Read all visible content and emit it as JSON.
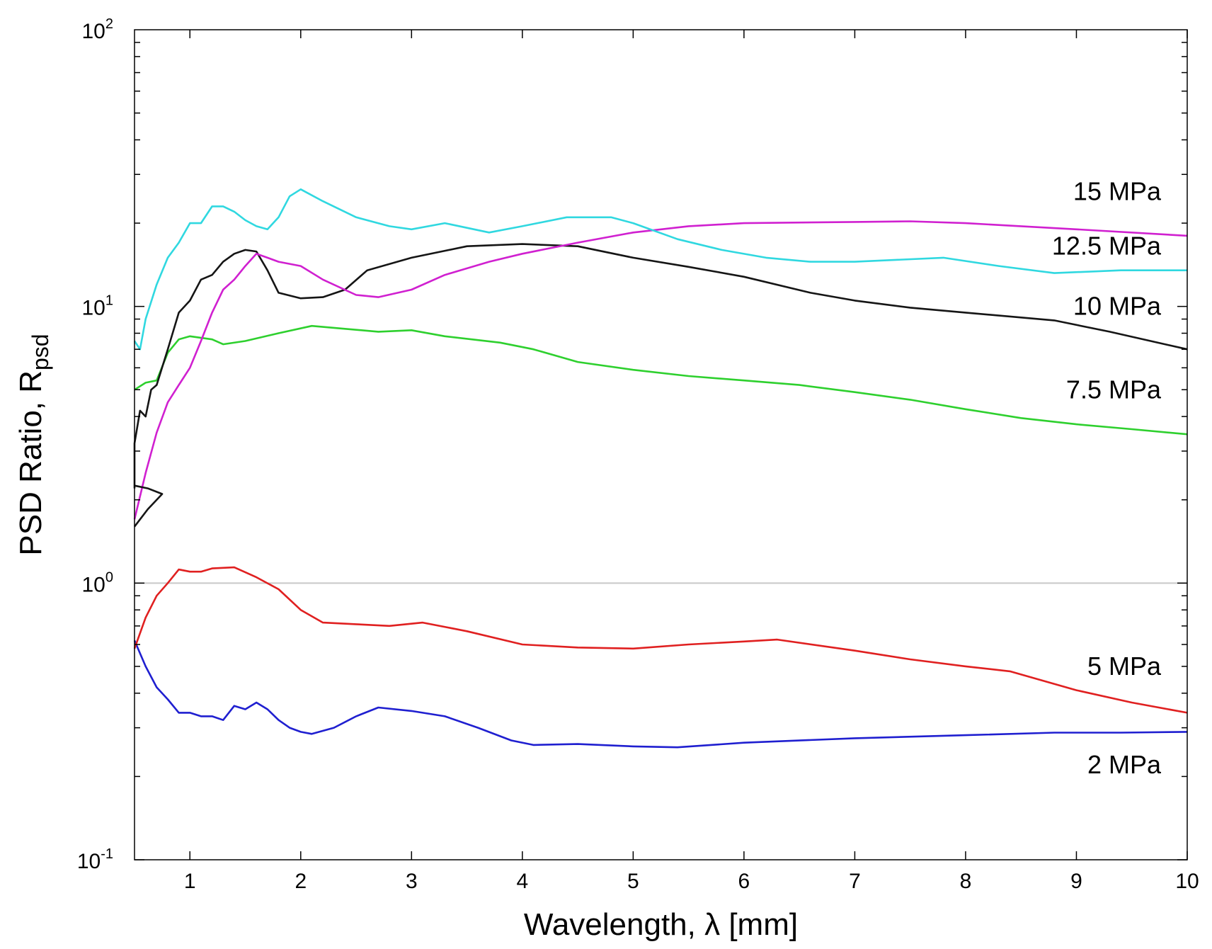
{
  "chart_data": {
    "type": "line",
    "title": "",
    "xlabel": "Wavelength, λ [mm]",
    "ylabel": "PSD Ratio, R",
    "ylabel_sub": "psd",
    "xlim": [
      0.5,
      10
    ],
    "ylim": [
      0.1,
      100
    ],
    "yscale": "log",
    "grid": false,
    "x_ticks": [
      "1",
      "2",
      "3",
      "4",
      "5",
      "6",
      "7",
      "8",
      "9",
      "10"
    ],
    "y_ticks": [
      {
        "base": "10",
        "exp": "-1"
      },
      {
        "base": "10",
        "exp": "0"
      },
      {
        "base": "10",
        "exp": "1"
      },
      {
        "base": "10",
        "exp": "2"
      }
    ],
    "reference_line": {
      "y": 1,
      "color": "#c8c8c8"
    },
    "series": [
      {
        "name": "2 MPa",
        "color": "#1f1fd0",
        "label_pos": [
          9.5,
          0.22
        ],
        "points": [
          [
            0.5,
            0.62
          ],
          [
            0.6,
            0.5
          ],
          [
            0.7,
            0.42
          ],
          [
            0.8,
            0.38
          ],
          [
            0.9,
            0.34
          ],
          [
            1.0,
            0.34
          ],
          [
            1.1,
            0.33
          ],
          [
            1.2,
            0.33
          ],
          [
            1.3,
            0.32
          ],
          [
            1.4,
            0.36
          ],
          [
            1.5,
            0.35
          ],
          [
            1.6,
            0.37
          ],
          [
            1.7,
            0.35
          ],
          [
            1.8,
            0.32
          ],
          [
            1.9,
            0.3
          ],
          [
            2.0,
            0.29
          ],
          [
            2.1,
            0.285
          ],
          [
            2.3,
            0.3
          ],
          [
            2.5,
            0.33
          ],
          [
            2.7,
            0.355
          ],
          [
            3.0,
            0.345
          ],
          [
            3.3,
            0.33
          ],
          [
            3.6,
            0.3
          ],
          [
            3.9,
            0.27
          ],
          [
            4.1,
            0.26
          ],
          [
            4.5,
            0.262
          ],
          [
            5.0,
            0.257
          ],
          [
            5.4,
            0.255
          ],
          [
            6.0,
            0.265
          ],
          [
            7.0,
            0.275
          ],
          [
            8.0,
            0.282
          ],
          [
            8.8,
            0.288
          ],
          [
            9.4,
            0.288
          ],
          [
            10.0,
            0.29
          ]
        ]
      },
      {
        "name": "5 MPa",
        "color": "#e02020",
        "label_pos": [
          9.5,
          0.5
        ],
        "points": [
          [
            0.5,
            0.58
          ],
          [
            0.6,
            0.75
          ],
          [
            0.7,
            0.9
          ],
          [
            0.8,
            1.0
          ],
          [
            0.9,
            1.12
          ],
          [
            1.0,
            1.1
          ],
          [
            1.1,
            1.1
          ],
          [
            1.2,
            1.13
          ],
          [
            1.4,
            1.14
          ],
          [
            1.6,
            1.05
          ],
          [
            1.8,
            0.95
          ],
          [
            2.0,
            0.8
          ],
          [
            2.2,
            0.72
          ],
          [
            2.5,
            0.71
          ],
          [
            2.8,
            0.7
          ],
          [
            3.1,
            0.72
          ],
          [
            3.5,
            0.67
          ],
          [
            4.0,
            0.6
          ],
          [
            4.5,
            0.585
          ],
          [
            5.0,
            0.58
          ],
          [
            5.5,
            0.6
          ],
          [
            6.0,
            0.615
          ],
          [
            6.3,
            0.625
          ],
          [
            7.0,
            0.57
          ],
          [
            7.5,
            0.53
          ],
          [
            8.0,
            0.5
          ],
          [
            8.4,
            0.48
          ],
          [
            9.0,
            0.41
          ],
          [
            9.5,
            0.37
          ],
          [
            10.0,
            0.34
          ]
        ]
      },
      {
        "name": "7.5 MPa",
        "color": "#2ed02e",
        "label_pos": [
          9.5,
          5.0
        ],
        "points": [
          [
            0.5,
            5.0
          ],
          [
            0.6,
            5.3
          ],
          [
            0.7,
            5.4
          ],
          [
            0.8,
            6.8
          ],
          [
            0.9,
            7.6
          ],
          [
            1.0,
            7.8
          ],
          [
            1.2,
            7.6
          ],
          [
            1.3,
            7.3
          ],
          [
            1.5,
            7.5
          ],
          [
            1.8,
            8.0
          ],
          [
            2.1,
            8.5
          ],
          [
            2.4,
            8.3
          ],
          [
            2.7,
            8.1
          ],
          [
            3.0,
            8.2
          ],
          [
            3.3,
            7.8
          ],
          [
            3.8,
            7.4
          ],
          [
            4.1,
            7.0
          ],
          [
            4.5,
            6.3
          ],
          [
            5.0,
            5.9
          ],
          [
            5.5,
            5.6
          ],
          [
            6.0,
            5.4
          ],
          [
            6.5,
            5.2
          ],
          [
            7.0,
            4.9
          ],
          [
            7.5,
            4.6
          ],
          [
            8.0,
            4.25
          ],
          [
            8.5,
            3.95
          ],
          [
            9.0,
            3.75
          ],
          [
            9.5,
            3.6
          ],
          [
            10.0,
            3.45
          ]
        ]
      },
      {
        "name": "10 MPa",
        "color": "#151515",
        "label_pos": [
          9.5,
          10.0
        ],
        "points": [
          [
            0.5,
            2.2
          ],
          [
            0.5,
            3.2
          ],
          [
            0.55,
            4.2
          ],
          [
            0.6,
            4.0
          ],
          [
            0.65,
            5.0
          ],
          [
            0.7,
            5.2
          ],
          [
            0.8,
            7.0
          ],
          [
            0.9,
            9.5
          ],
          [
            1.0,
            10.5
          ],
          [
            1.1,
            12.5
          ],
          [
            1.2,
            13.0
          ],
          [
            1.3,
            14.5
          ],
          [
            1.4,
            15.5
          ],
          [
            1.5,
            16.0
          ],
          [
            1.6,
            15.8
          ],
          [
            1.7,
            13.5
          ],
          [
            1.8,
            11.2
          ],
          [
            2.0,
            10.7
          ],
          [
            2.2,
            10.8
          ],
          [
            2.4,
            11.5
          ],
          [
            2.6,
            13.5
          ],
          [
            3.0,
            15.0
          ],
          [
            3.5,
            16.5
          ],
          [
            4.0,
            16.8
          ],
          [
            4.5,
            16.5
          ],
          [
            5.0,
            15.0
          ],
          [
            5.5,
            13.9
          ],
          [
            6.0,
            12.8
          ],
          [
            6.6,
            11.2
          ],
          [
            7.0,
            10.5
          ],
          [
            7.5,
            9.9
          ],
          [
            8.0,
            9.5
          ],
          [
            8.8,
            8.9
          ],
          [
            9.3,
            8.1
          ],
          [
            10.0,
            7.0
          ]
        ]
      },
      {
        "name": "12.5 MPa",
        "color": "#d020d0",
        "label_pos": [
          9.5,
          16.5
        ],
        "points": [
          [
            0.5,
            1.7
          ],
          [
            0.6,
            2.5
          ],
          [
            0.7,
            3.5
          ],
          [
            0.8,
            4.5
          ],
          [
            0.9,
            5.2
          ],
          [
            1.0,
            6.0
          ],
          [
            1.1,
            7.5
          ],
          [
            1.2,
            9.5
          ],
          [
            1.3,
            11.5
          ],
          [
            1.4,
            12.5
          ],
          [
            1.5,
            14.0
          ],
          [
            1.6,
            15.5
          ],
          [
            1.7,
            15.0
          ],
          [
            1.8,
            14.5
          ],
          [
            2.0,
            14.0
          ],
          [
            2.2,
            12.5
          ],
          [
            2.5,
            11.0
          ],
          [
            2.7,
            10.8
          ],
          [
            3.0,
            11.5
          ],
          [
            3.3,
            13.0
          ],
          [
            3.7,
            14.5
          ],
          [
            4.0,
            15.5
          ],
          [
            4.5,
            17.0
          ],
          [
            5.0,
            18.5
          ],
          [
            5.5,
            19.5
          ],
          [
            6.0,
            20.0
          ],
          [
            7.0,
            20.2
          ],
          [
            7.5,
            20.3
          ],
          [
            8.0,
            20.0
          ],
          [
            9.0,
            19.0
          ],
          [
            10.0,
            18.0
          ]
        ]
      },
      {
        "name": "15 MPa",
        "color": "#30d8e0",
        "label_pos": [
          9.5,
          26.0
        ],
        "points": [
          [
            0.5,
            7.5
          ],
          [
            0.55,
            7.0
          ],
          [
            0.6,
            9.0
          ],
          [
            0.7,
            12.0
          ],
          [
            0.8,
            15.0
          ],
          [
            0.9,
            17.0
          ],
          [
            1.0,
            20.0
          ],
          [
            1.1,
            20.0
          ],
          [
            1.2,
            23.0
          ],
          [
            1.3,
            23.0
          ],
          [
            1.4,
            22.0
          ],
          [
            1.5,
            20.5
          ],
          [
            1.6,
            19.5
          ],
          [
            1.7,
            19.0
          ],
          [
            1.8,
            21.0
          ],
          [
            1.9,
            25.0
          ],
          [
            2.0,
            26.5
          ],
          [
            2.2,
            24.0
          ],
          [
            2.5,
            21.0
          ],
          [
            2.8,
            19.5
          ],
          [
            3.0,
            19.0
          ],
          [
            3.3,
            20.0
          ],
          [
            3.7,
            18.5
          ],
          [
            4.0,
            19.5
          ],
          [
            4.4,
            21.0
          ],
          [
            4.8,
            21.0
          ],
          [
            5.0,
            20.0
          ],
          [
            5.4,
            17.5
          ],
          [
            5.8,
            16.0
          ],
          [
            6.2,
            15.0
          ],
          [
            6.6,
            14.5
          ],
          [
            7.0,
            14.5
          ],
          [
            7.8,
            15.0
          ],
          [
            8.3,
            14.0
          ],
          [
            8.8,
            13.2
          ],
          [
            9.4,
            13.5
          ],
          [
            10.0,
            13.5
          ]
        ]
      },
      {
        "name": "",
        "color": "#151515",
        "points": [
          [
            0.5,
            1.6
          ],
          [
            0.62,
            1.85
          ],
          [
            0.75,
            2.1
          ],
          [
            0.62,
            2.2
          ],
          [
            0.5,
            2.25
          ]
        ]
      }
    ]
  }
}
